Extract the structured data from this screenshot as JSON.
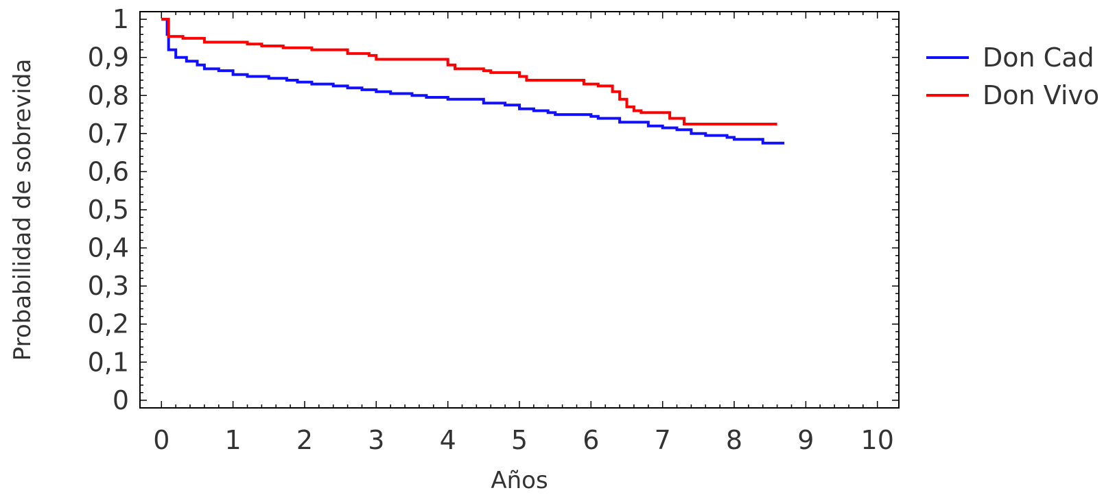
{
  "chart_data": {
    "type": "line",
    "step": true,
    "title": "",
    "xlabel": "Años",
    "ylabel": "Probabilidad de sobrevida",
    "xlim": [
      -0.3,
      10.3
    ],
    "ylim": [
      -0.02,
      1.02
    ],
    "xticks": [
      0,
      1,
      2,
      3,
      4,
      5,
      6,
      7,
      8,
      9,
      10
    ],
    "xtick_labels": [
      "0",
      "1",
      "2",
      "3",
      "4",
      "5",
      "6",
      "7",
      "8",
      "9",
      "10"
    ],
    "yticks": [
      0,
      0.1,
      0.2,
      0.3,
      0.4,
      0.5,
      0.6,
      0.7,
      0.8,
      0.9,
      1
    ],
    "ytick_labels": [
      "0",
      "0,1",
      "0,2",
      "0,3",
      "0,4",
      "0,5",
      "0,6",
      "0,7",
      "0,8",
      "0,9",
      "1"
    ],
    "grid": false,
    "legend_position": "right",
    "series": [
      {
        "name": "Don Cad",
        "color": "#1010ff",
        "points": [
          [
            0,
            1.0
          ],
          [
            0.08,
            0.96
          ],
          [
            0.1,
            0.92
          ],
          [
            0.2,
            0.9
          ],
          [
            0.35,
            0.89
          ],
          [
            0.5,
            0.88
          ],
          [
            0.6,
            0.87
          ],
          [
            0.8,
            0.865
          ],
          [
            1.0,
            0.855
          ],
          [
            1.2,
            0.85
          ],
          [
            1.5,
            0.845
          ],
          [
            1.75,
            0.84
          ],
          [
            1.9,
            0.835
          ],
          [
            2.1,
            0.83
          ],
          [
            2.4,
            0.825
          ],
          [
            2.6,
            0.82
          ],
          [
            2.8,
            0.815
          ],
          [
            3.0,
            0.81
          ],
          [
            3.2,
            0.805
          ],
          [
            3.5,
            0.8
          ],
          [
            3.7,
            0.795
          ],
          [
            4.0,
            0.79
          ],
          [
            4.5,
            0.78
          ],
          [
            4.8,
            0.775
          ],
          [
            5.0,
            0.765
          ],
          [
            5.2,
            0.76
          ],
          [
            5.4,
            0.755
          ],
          [
            5.5,
            0.75
          ],
          [
            6.0,
            0.745
          ],
          [
            6.1,
            0.74
          ],
          [
            6.4,
            0.73
          ],
          [
            6.8,
            0.72
          ],
          [
            7.0,
            0.715
          ],
          [
            7.2,
            0.71
          ],
          [
            7.4,
            0.7
          ],
          [
            7.6,
            0.695
          ],
          [
            7.9,
            0.69
          ],
          [
            8.0,
            0.685
          ],
          [
            8.4,
            0.675
          ],
          [
            8.7,
            0.675
          ]
        ]
      },
      {
        "name": "Don Vivo",
        "color": "#ff0000",
        "points": [
          [
            0,
            1.0
          ],
          [
            0.1,
            0.955
          ],
          [
            0.3,
            0.95
          ],
          [
            0.6,
            0.94
          ],
          [
            1.2,
            0.935
          ],
          [
            1.4,
            0.93
          ],
          [
            1.7,
            0.925
          ],
          [
            2.1,
            0.92
          ],
          [
            2.6,
            0.91
          ],
          [
            2.9,
            0.905
          ],
          [
            3.0,
            0.895
          ],
          [
            4.0,
            0.88
          ],
          [
            4.1,
            0.87
          ],
          [
            4.5,
            0.865
          ],
          [
            4.6,
            0.86
          ],
          [
            5.0,
            0.85
          ],
          [
            5.1,
            0.84
          ],
          [
            5.9,
            0.83
          ],
          [
            6.1,
            0.825
          ],
          [
            6.3,
            0.81
          ],
          [
            6.4,
            0.79
          ],
          [
            6.5,
            0.77
          ],
          [
            6.6,
            0.76
          ],
          [
            6.7,
            0.755
          ],
          [
            7.1,
            0.74
          ],
          [
            7.3,
            0.725
          ],
          [
            8.6,
            0.725
          ]
        ]
      }
    ]
  }
}
